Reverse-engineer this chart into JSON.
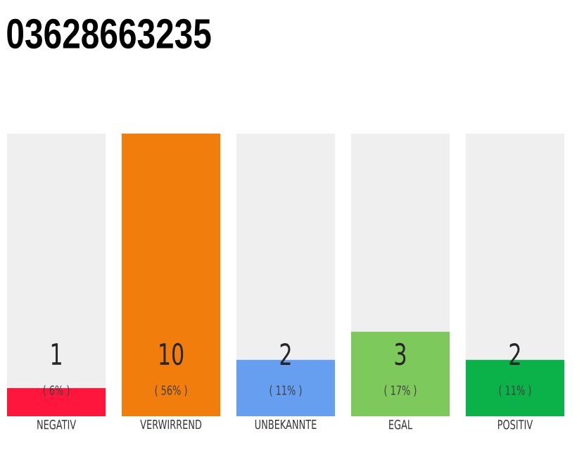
{
  "chart_data": {
    "type": "bar",
    "title": "03628663235",
    "stacked": true,
    "categories": [
      "NEGATIV",
      "VERWIRREND",
      "UNBEKANNTE",
      "EGAL",
      "POSITIV"
    ],
    "series": [
      {
        "colors": [
          "#fe163c",
          "#f07d0c",
          "#679ff0",
          "#7ec95c",
          "#0bb24a"
        ],
        "values": [
          1,
          10,
          2,
          3,
          2
        ],
        "value_labels": [
          "1",
          "10",
          "2",
          "3",
          "2"
        ]
      },
      {
        "color": "#efefef",
        "values": [
          9,
          0,
          8,
          7,
          8
        ]
      }
    ],
    "annotations": [
      "( 6% )",
      "( 56% )",
      "( 11% )",
      "( 17% )",
      "( 11% )"
    ]
  }
}
